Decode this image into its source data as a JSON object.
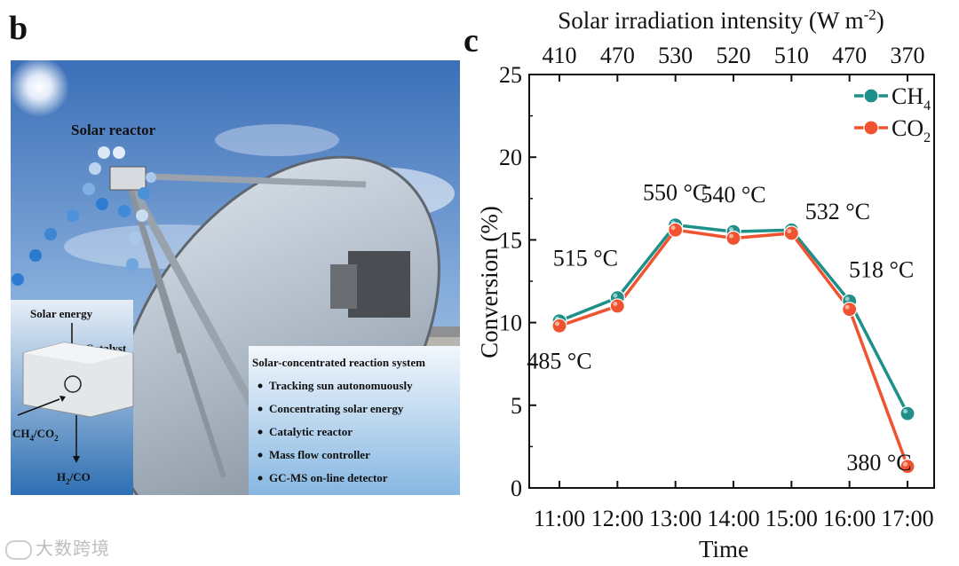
{
  "panels": {
    "left_letter": "b",
    "right_letter": "c"
  },
  "photo": {
    "reactor_label": "Solar reactor",
    "inset": {
      "solar_energy": "Solar energy",
      "catalyst": "Catalyst",
      "inlet_html": [
        "CH",
        "4",
        "/CO",
        "2"
      ],
      "outlet_html": [
        "H",
        "2",
        "/CO"
      ]
    },
    "system_box": {
      "title": "Solar-concentrated reaction system",
      "items": [
        "Tracking sun autonomuously",
        "Concentrating solar energy",
        "Catalytic reactor",
        "Mass flow controller",
        "GC-MS on-line detector"
      ]
    }
  },
  "chart_data": {
    "type": "line",
    "top_axis_label": "Solar irradiation intensity (W m",
    "top_axis_label_sup": "-2",
    "top_axis_label_end": ")",
    "top_ticks": [
      "410",
      "470",
      "530",
      "520",
      "510",
      "470",
      "370"
    ],
    "xlabel": "Time",
    "ylabel": "Conversion (%)",
    "categories": [
      "11:00",
      "12:00",
      "13:00",
      "14:00",
      "15:00",
      "16:00",
      "17:00"
    ],
    "ylim": [
      0,
      25
    ],
    "yticks": [
      "0",
      "5",
      "10",
      "15",
      "20",
      "25"
    ],
    "series": [
      {
        "name": "CH",
        "name_sub": "4",
        "color": "#1f8f8a",
        "values": [
          10.1,
          11.5,
          15.9,
          15.5,
          15.6,
          11.3,
          4.5
        ]
      },
      {
        "name": "CO",
        "name_sub": "2",
        "color": "#f0532f",
        "values": [
          9.8,
          11.0,
          15.6,
          15.1,
          15.4,
          10.8,
          1.3
        ]
      }
    ],
    "annotations": [
      "485 °C",
      "515 °C",
      "550 °C",
      "540 °C",
      "532 °C",
      "518 °C",
      "380 °C"
    ],
    "legend": "top-right"
  },
  "watermark": "大数跨境"
}
